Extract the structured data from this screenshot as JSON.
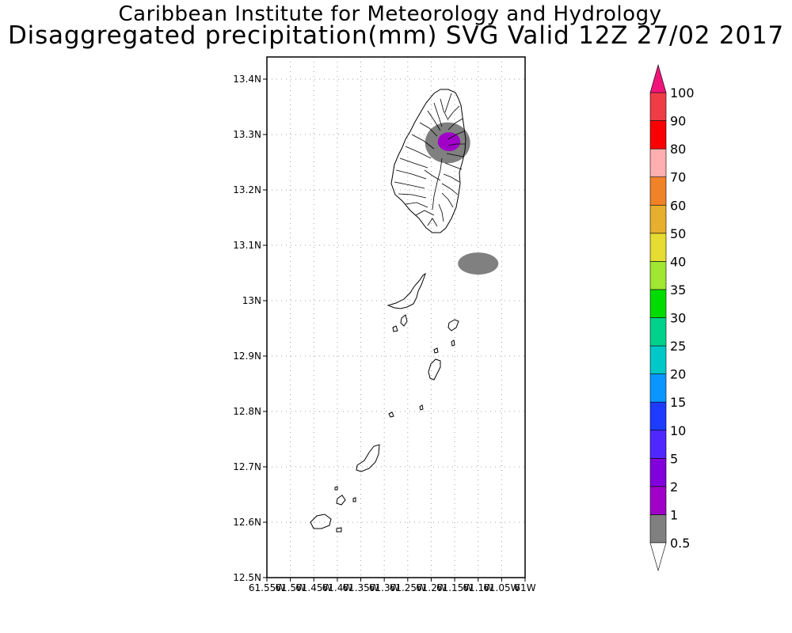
{
  "header": {
    "title": "Caribbean Institute for Meteorology and Hydrology",
    "subtitle": "Disaggregated precipitation(mm) SVG Valid 12Z 27/02 2017"
  },
  "map": {
    "lon_range": [
      -61.55,
      -61.0
    ],
    "lat_range": [
      12.5,
      13.44
    ],
    "x_ticks": [
      {
        "lon": -61.55,
        "label": "61.55W"
      },
      {
        "lon": -61.5,
        "label": "61.5W"
      },
      {
        "lon": -61.45,
        "label": "61.45W"
      },
      {
        "lon": -61.4,
        "label": "61.4W"
      },
      {
        "lon": -61.35,
        "label": "61.35W"
      },
      {
        "lon": -61.3,
        "label": "61.3W"
      },
      {
        "lon": -61.25,
        "label": "61.25W"
      },
      {
        "lon": -61.2,
        "label": "61.2W"
      },
      {
        "lon": -61.15,
        "label": "61.15W"
      },
      {
        "lon": -61.1,
        "label": "61.1W"
      },
      {
        "lon": -61.05,
        "label": "61.05W"
      },
      {
        "lon": -61.0,
        "label": "61W"
      }
    ],
    "y_ticks": [
      {
        "lat": 13.4,
        "label": "13.4N"
      },
      {
        "lat": 13.3,
        "label": "13.3N"
      },
      {
        "lat": 13.2,
        "label": "13.2N"
      },
      {
        "lat": 13.1,
        "label": "13.1N"
      },
      {
        "lat": 13.0,
        "label": "13N"
      },
      {
        "lat": 12.9,
        "label": "12.9N"
      },
      {
        "lat": 12.8,
        "label": "12.8N"
      },
      {
        "lat": 12.7,
        "label": "12.7N"
      },
      {
        "lat": 12.6,
        "label": "12.6N"
      },
      {
        "lat": 12.5,
        "label": "12.5N"
      }
    ],
    "grid": true,
    "precip_areas": [
      {
        "name": "north-cell-outer",
        "lon": -61.165,
        "lat": 13.285,
        "rx_deg": 0.048,
        "ry_deg": 0.037,
        "level": "0.5-1"
      },
      {
        "name": "north-cell-inner",
        "lon": -61.162,
        "lat": 13.287,
        "rx_deg": 0.024,
        "ry_deg": 0.017,
        "level": "1-2"
      },
      {
        "name": "east-cell",
        "lon": -61.1,
        "lat": 13.067,
        "rx_deg": 0.043,
        "ry_deg": 0.02,
        "level": "0.5-1"
      }
    ]
  },
  "colorbar": {
    "labels": [
      "0.5",
      "1",
      "2",
      "5",
      "10",
      "15",
      "20",
      "25",
      "30",
      "35",
      "40",
      "50",
      "60",
      "70",
      "80",
      "90",
      "100"
    ],
    "colors": [
      "#808080",
      "#a000c8",
      "#8200dc",
      "#5028ff",
      "#1e3cff",
      "#0a96ff",
      "#00c8c8",
      "#00d28c",
      "#00dc00",
      "#a0e632",
      "#e6dc32",
      "#e6af2d",
      "#f08228",
      "#ffafaf",
      "#fa0000",
      "#f03c46",
      "#f0147a"
    ],
    "under_color": "#ffffff",
    "over_color": "#f0147a"
  }
}
